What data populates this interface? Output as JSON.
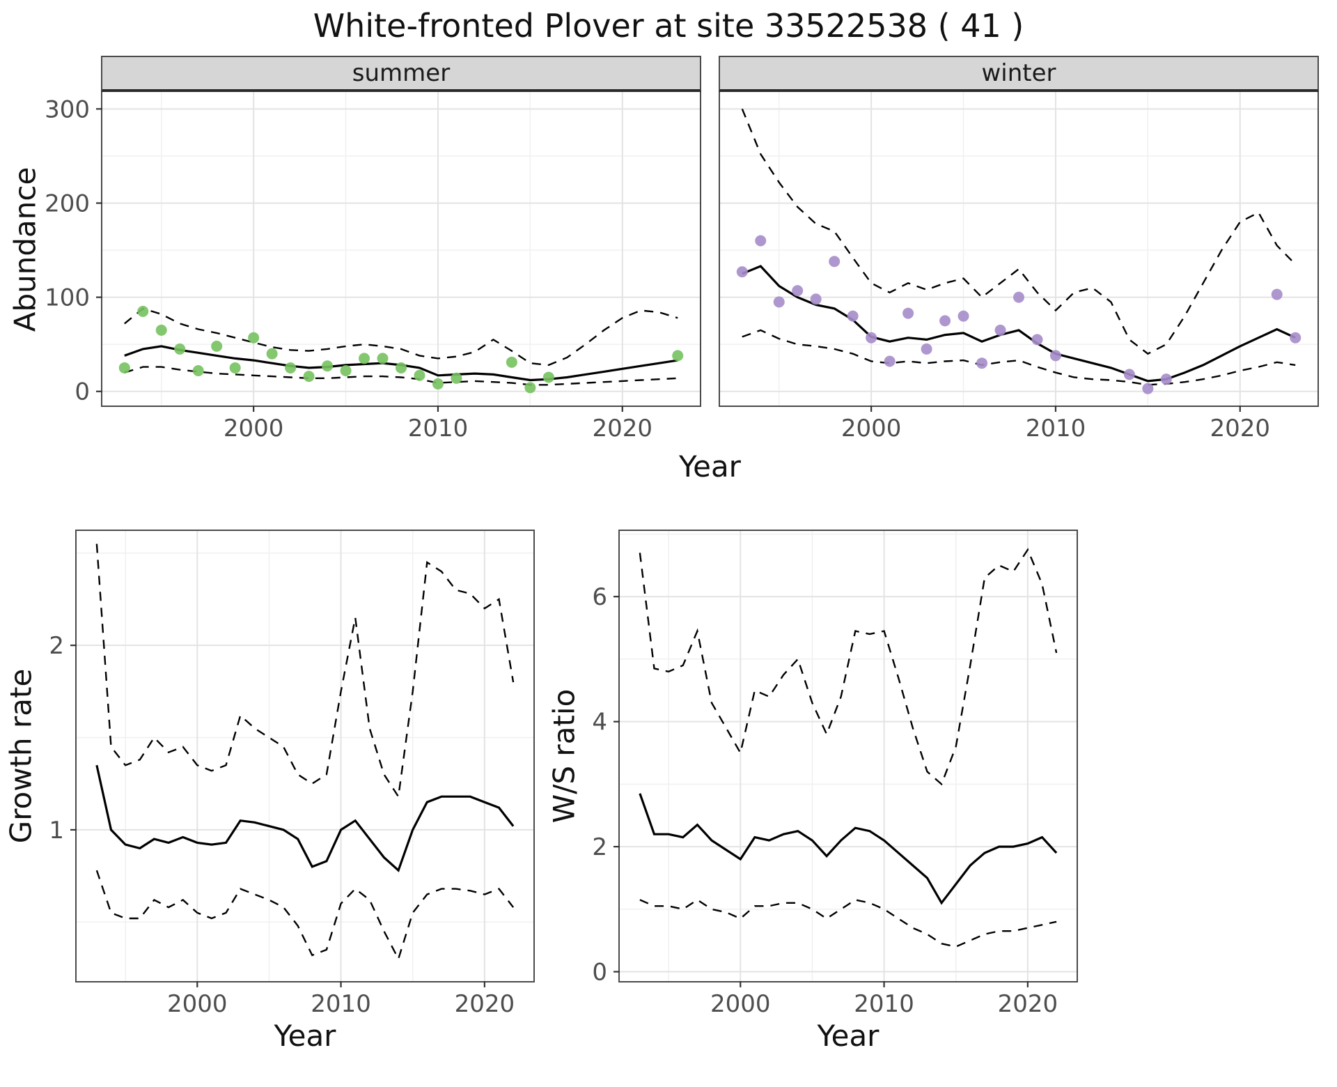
{
  "title": "White-fronted Plover at site 33522538 ( 41 )",
  "axis_labels": {
    "abundance": "Abundance",
    "year": "Year",
    "growth_rate": "Growth rate",
    "ws_ratio": "W/S ratio"
  },
  "colors": {
    "line": "#000000",
    "summer_points": "#76c15f",
    "winter_points": "#a58cc9",
    "strip_bg": "#d6d6d6",
    "grid_major": "#e3e3e3",
    "grid_minor": "#f0f0f0",
    "tick": "#333333",
    "tick_label": "#4d4d4d"
  },
  "chart_data": [
    {
      "id": "abundance-summer",
      "type": "line",
      "strip": "summer",
      "xlabel": "Year",
      "ylabel": "Abundance",
      "xlim": [
        1991.8,
        2024.2
      ],
      "ylim": [
        -15,
        318
      ],
      "xticks": [
        2000,
        2010,
        2020
      ],
      "yticks": [
        0,
        100,
        200,
        300
      ],
      "show_yticklabels": true,
      "x": [
        1993,
        1994,
        1995,
        1996,
        1997,
        1998,
        1999,
        2000,
        2001,
        2002,
        2003,
        2004,
        2005,
        2006,
        2007,
        2008,
        2009,
        2010,
        2011,
        2012,
        2013,
        2014,
        2015,
        2016,
        2017,
        2018,
        2019,
        2020,
        2021,
        2022,
        2023
      ],
      "series": [
        {
          "name": "estimate",
          "dash": false,
          "values": [
            38,
            45,
            48,
            44,
            41,
            38,
            35,
            33,
            30,
            27,
            25,
            26,
            28,
            29,
            30,
            28,
            25,
            17,
            18,
            19,
            18,
            15,
            12,
            13,
            15,
            18,
            21,
            24,
            27,
            30,
            33
          ]
        },
        {
          "name": "upper-ci",
          "dash": true,
          "values": [
            72,
            88,
            82,
            72,
            66,
            62,
            57,
            52,
            47,
            44,
            43,
            45,
            48,
            50,
            48,
            45,
            38,
            35,
            37,
            42,
            55,
            43,
            30,
            28,
            36,
            50,
            65,
            78,
            86,
            84,
            78
          ]
        },
        {
          "name": "lower-ci",
          "dash": true,
          "values": [
            20,
            26,
            26,
            23,
            21,
            19,
            18,
            17,
            16,
            15,
            14,
            14,
            15,
            16,
            16,
            15,
            13,
            9,
            10,
            11,
            10,
            9,
            7,
            7,
            8,
            9,
            10,
            11,
            12,
            13,
            14
          ]
        }
      ],
      "points": {
        "label": "observed-counts-summer",
        "color": "#76c15f",
        "x": [
          1993,
          1994,
          1995,
          1996,
          1997,
          1998,
          1999,
          2000,
          2001,
          2002,
          2003,
          2004,
          2005,
          2006,
          2007,
          2008,
          2009,
          2010,
          2011,
          2014,
          2015,
          2016,
          2023
        ],
        "y": [
          25,
          85,
          65,
          45,
          22,
          48,
          25,
          57,
          40,
          25,
          16,
          27,
          22,
          35,
          35,
          25,
          17,
          8,
          14,
          31,
          4,
          15,
          38
        ]
      }
    },
    {
      "id": "abundance-winter",
      "type": "line",
      "strip": "winter",
      "xlabel": "Year",
      "ylabel": "Abundance",
      "xlim": [
        1991.8,
        2024.2
      ],
      "ylim": [
        -15,
        318
      ],
      "xticks": [
        2000,
        2010,
        2020
      ],
      "yticks": [
        0,
        100,
        200,
        300
      ],
      "show_yticklabels": false,
      "x": [
        1993,
        1994,
        1995,
        1996,
        1997,
        1998,
        1999,
        2000,
        2001,
        2002,
        2003,
        2004,
        2005,
        2006,
        2007,
        2008,
        2009,
        2010,
        2011,
        2012,
        2013,
        2014,
        2015,
        2016,
        2017,
        2018,
        2019,
        2020,
        2021,
        2022,
        2023
      ],
      "series": [
        {
          "name": "estimate",
          "dash": false,
          "values": [
            125,
            133,
            112,
            100,
            92,
            88,
            76,
            58,
            53,
            57,
            55,
            60,
            62,
            53,
            60,
            65,
            51,
            40,
            35,
            30,
            25,
            18,
            11,
            13,
            20,
            28,
            38,
            48,
            57,
            66,
            57
          ]
        },
        {
          "name": "upper-ci",
          "dash": true,
          "values": [
            300,
            252,
            222,
            196,
            178,
            170,
            142,
            115,
            105,
            115,
            108,
            115,
            120,
            100,
            115,
            130,
            105,
            86,
            105,
            110,
            95,
            55,
            40,
            50,
            80,
            115,
            150,
            180,
            190,
            155,
            135
          ]
        },
        {
          "name": "lower-ci",
          "dash": true,
          "values": [
            58,
            65,
            56,
            50,
            48,
            45,
            40,
            32,
            30,
            32,
            30,
            32,
            33,
            28,
            31,
            33,
            26,
            20,
            15,
            13,
            12,
            10,
            7,
            8,
            10,
            13,
            17,
            22,
            26,
            31,
            28
          ]
        }
      ],
      "points": {
        "label": "observed-counts-winter",
        "color": "#a58cc9",
        "x": [
          1993,
          1994,
          1995,
          1996,
          1997,
          1998,
          1999,
          2000,
          2001,
          2002,
          2003,
          2004,
          2005,
          2006,
          2007,
          2008,
          2009,
          2010,
          2014,
          2015,
          2016,
          2022,
          2023
        ],
        "y": [
          127,
          160,
          95,
          107,
          98,
          138,
          80,
          57,
          32,
          83,
          45,
          75,
          80,
          30,
          65,
          100,
          55,
          38,
          18,
          3,
          13,
          103,
          57
        ]
      }
    },
    {
      "id": "growth-rate",
      "type": "line",
      "strip": null,
      "xlabel": "Year",
      "ylabel": "Growth rate",
      "xlim": [
        1991.6,
        2023.4
      ],
      "ylim": [
        0.18,
        2.62
      ],
      "xticks": [
        2000,
        2010,
        2020
      ],
      "yticks": [
        1,
        2
      ],
      "show_yticklabels": true,
      "x": [
        1993,
        1994,
        1995,
        1996,
        1997,
        1998,
        1999,
        2000,
        2001,
        2002,
        2003,
        2004,
        2005,
        2006,
        2007,
        2008,
        2009,
        2010,
        2011,
        2012,
        2013,
        2014,
        2015,
        2016,
        2017,
        2018,
        2019,
        2020,
        2021,
        2022
      ],
      "series": [
        {
          "name": "estimate",
          "dash": false,
          "values": [
            1.35,
            1.0,
            0.92,
            0.9,
            0.95,
            0.93,
            0.96,
            0.93,
            0.92,
            0.93,
            1.05,
            1.04,
            1.02,
            1.0,
            0.95,
            0.8,
            0.83,
            1.0,
            1.05,
            0.95,
            0.85,
            0.78,
            1.0,
            1.15,
            1.18,
            1.18,
            1.18,
            1.15,
            1.12,
            1.02
          ]
        },
        {
          "name": "upper-ci",
          "dash": true,
          "values": [
            2.55,
            1.45,
            1.35,
            1.38,
            1.5,
            1.42,
            1.45,
            1.35,
            1.32,
            1.35,
            1.62,
            1.55,
            1.5,
            1.45,
            1.3,
            1.25,
            1.3,
            1.75,
            2.15,
            1.55,
            1.3,
            1.18,
            1.75,
            2.45,
            2.4,
            2.3,
            2.28,
            2.2,
            2.25,
            1.8
          ]
        },
        {
          "name": "lower-ci",
          "dash": true,
          "values": [
            0.78,
            0.55,
            0.52,
            0.52,
            0.62,
            0.58,
            0.62,
            0.55,
            0.52,
            0.55,
            0.68,
            0.65,
            0.62,
            0.58,
            0.48,
            0.32,
            0.35,
            0.6,
            0.68,
            0.62,
            0.45,
            0.3,
            0.55,
            0.65,
            0.68,
            0.68,
            0.67,
            0.65,
            0.68,
            0.58
          ]
        }
      ],
      "points": null
    },
    {
      "id": "ws-ratio",
      "type": "line",
      "strip": null,
      "xlabel": "Year",
      "ylabel": "W/S ratio",
      "xlim": [
        1991.6,
        2023.4
      ],
      "ylim": [
        -0.15,
        7.05
      ],
      "xticks": [
        2000,
        2010,
        2020
      ],
      "yticks": [
        0,
        2,
        4,
        6
      ],
      "show_yticklabels": true,
      "x": [
        1993,
        1994,
        1995,
        1996,
        1997,
        1998,
        1999,
        2000,
        2001,
        2002,
        2003,
        2004,
        2005,
        2006,
        2007,
        2008,
        2009,
        2010,
        2011,
        2012,
        2013,
        2014,
        2015,
        2016,
        2017,
        2018,
        2019,
        2020,
        2021,
        2022
      ],
      "series": [
        {
          "name": "estimate",
          "dash": false,
          "values": [
            2.85,
            2.2,
            2.2,
            2.15,
            2.35,
            2.1,
            1.95,
            1.8,
            2.15,
            2.1,
            2.2,
            2.25,
            2.1,
            1.85,
            2.1,
            2.3,
            2.25,
            2.1,
            1.9,
            1.7,
            1.5,
            1.1,
            1.4,
            1.7,
            1.9,
            2.0,
            2.0,
            2.05,
            2.15,
            1.9
          ]
        },
        {
          "name": "upper-ci",
          "dash": true,
          "values": [
            6.7,
            4.85,
            4.8,
            4.9,
            5.45,
            4.3,
            3.9,
            3.5,
            4.5,
            4.4,
            4.75,
            5.0,
            4.3,
            3.8,
            4.4,
            5.45,
            5.4,
            5.45,
            4.7,
            3.9,
            3.2,
            3.0,
            3.6,
            4.9,
            6.3,
            6.5,
            6.4,
            6.75,
            6.2,
            5.1
          ]
        },
        {
          "name": "lower-ci",
          "dash": true,
          "values": [
            1.15,
            1.05,
            1.05,
            1.0,
            1.15,
            1.0,
            0.95,
            0.85,
            1.05,
            1.05,
            1.1,
            1.1,
            1.0,
            0.85,
            1.0,
            1.15,
            1.1,
            1.0,
            0.85,
            0.7,
            0.6,
            0.45,
            0.4,
            0.5,
            0.6,
            0.65,
            0.65,
            0.7,
            0.75,
            0.8
          ]
        }
      ],
      "points": null
    }
  ]
}
